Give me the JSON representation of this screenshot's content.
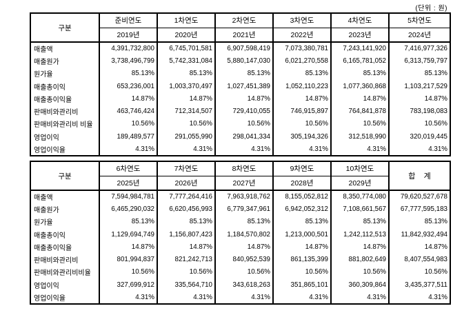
{
  "unit_label": "(단위 : 원)",
  "tables": [
    {
      "header": {
        "corner": "구분",
        "year_columns": [
          {
            "line1": "준비연도",
            "line2": "2019년"
          },
          {
            "line1": "1차연도",
            "line2": "2020년"
          },
          {
            "line1": "2차연도",
            "line2": "2021년"
          },
          {
            "line1": "3차연도",
            "line2": "2022년"
          },
          {
            "line1": "4차연도",
            "line2": "2023년"
          },
          {
            "line1": "5차연도",
            "line2": "2024년"
          }
        ]
      },
      "rows": [
        {
          "label": "매출액",
          "values": [
            "4,391,732,800",
            "6,745,701,581",
            "6,907,598,419",
            "7,073,380,781",
            "7,243,141,920",
            "7,416,977,326"
          ]
        },
        {
          "label": "매출원가",
          "values": [
            "3,738,496,799",
            "5,742,331,084",
            "5,880,147,030",
            "6,021,270,558",
            "6,165,781,052",
            "6,313,759,797"
          ]
        },
        {
          "label": "원가율",
          "values": [
            "85.13%",
            "85.13%",
            "85.13%",
            "85.13%",
            "85.13%",
            "85.13%"
          ]
        },
        {
          "label": "매출총이익",
          "values": [
            "653,236,001",
            "1,003,370,497",
            "1,027,451,389",
            "1,052,110,223",
            "1,077,360,868",
            "1,103,217,529"
          ]
        },
        {
          "label": "매출총이익율",
          "values": [
            "14.87%",
            "14.87%",
            "14.87%",
            "14.87%",
            "14.87%",
            "14.87%"
          ]
        },
        {
          "label": "판매비와관리비",
          "values": [
            "463,746,424",
            "712,314,507",
            "729,410,055",
            "746,915,897",
            "764,841,878",
            "783,198,083"
          ]
        },
        {
          "label": "판매비와관리비 비율",
          "values": [
            "10.56%",
            "10.56%",
            "10.56%",
            "10.56%",
            "10.56%",
            "10.56%"
          ]
        },
        {
          "label": "영업이익",
          "values": [
            "189,489,577",
            "291,055,990",
            "298,041,334",
            "305,194,326",
            "312,518,990",
            "320,019,445"
          ]
        },
        {
          "label": "영업이익율",
          "values": [
            "4.31%",
            "4.31%",
            "4.31%",
            "4.31%",
            "4.31%",
            "4.31%"
          ]
        }
      ]
    },
    {
      "header": {
        "corner": "구분",
        "year_columns": [
          {
            "line1": "6차연도",
            "line2": "2025년"
          },
          {
            "line1": "7차연도",
            "line2": "2026년"
          },
          {
            "line1": "8차연도",
            "line2": "2027년"
          },
          {
            "line1": "9차연도",
            "line2": "2028년"
          },
          {
            "line1": "10차연도",
            "line2": "2029년"
          }
        ],
        "total_column": "합    계"
      },
      "rows": [
        {
          "label": "매출액",
          "values": [
            "7,594,984,781",
            "7,777,264,416",
            "7,963,918,762",
            "8,155,052,812",
            "8,350,774,080",
            "79,620,527,678"
          ]
        },
        {
          "label": "매출원가",
          "values": [
            "6,465,290,032",
            "6,620,456,993",
            "6,779,347,961",
            "6,942,052,312",
            "7,108,661,567",
            "67,777,595,183"
          ]
        },
        {
          "label": "원가율",
          "values": [
            "85.13%",
            "85.13%",
            "85.13%",
            "85.13%",
            "85.13%",
            "85.13%"
          ]
        },
        {
          "label": "매출총이익",
          "values": [
            "1,129,694,749",
            "1,156,807,423",
            "1,184,570,802",
            "1,213,000,501",
            "1,242,112,513",
            "11,842,932,494"
          ]
        },
        {
          "label": "매출총이익율",
          "values": [
            "14.87%",
            "14.87%",
            "14.87%",
            "14.87%",
            "14.87%",
            "14.87%"
          ]
        },
        {
          "label": "판매비와관리비",
          "values": [
            "801,994,837",
            "821,242,713",
            "840,952,539",
            "861,135,399",
            "881,802,649",
            "8,407,554,983"
          ]
        },
        {
          "label": "판매비와관리비비율",
          "values": [
            "10.56%",
            "10.56%",
            "10.56%",
            "10.56%",
            "10.56%",
            "10.56%"
          ]
        },
        {
          "label": "영업이익",
          "values": [
            "327,699,912",
            "335,564,710",
            "343,618,263",
            "351,865,101",
            "360,309,864",
            "3,435,377,511"
          ]
        },
        {
          "label": "영업이익율",
          "values": [
            "4.31%",
            "4.31%",
            "4.31%",
            "4.31%",
            "4.31%",
            "4.31%"
          ]
        }
      ]
    }
  ]
}
